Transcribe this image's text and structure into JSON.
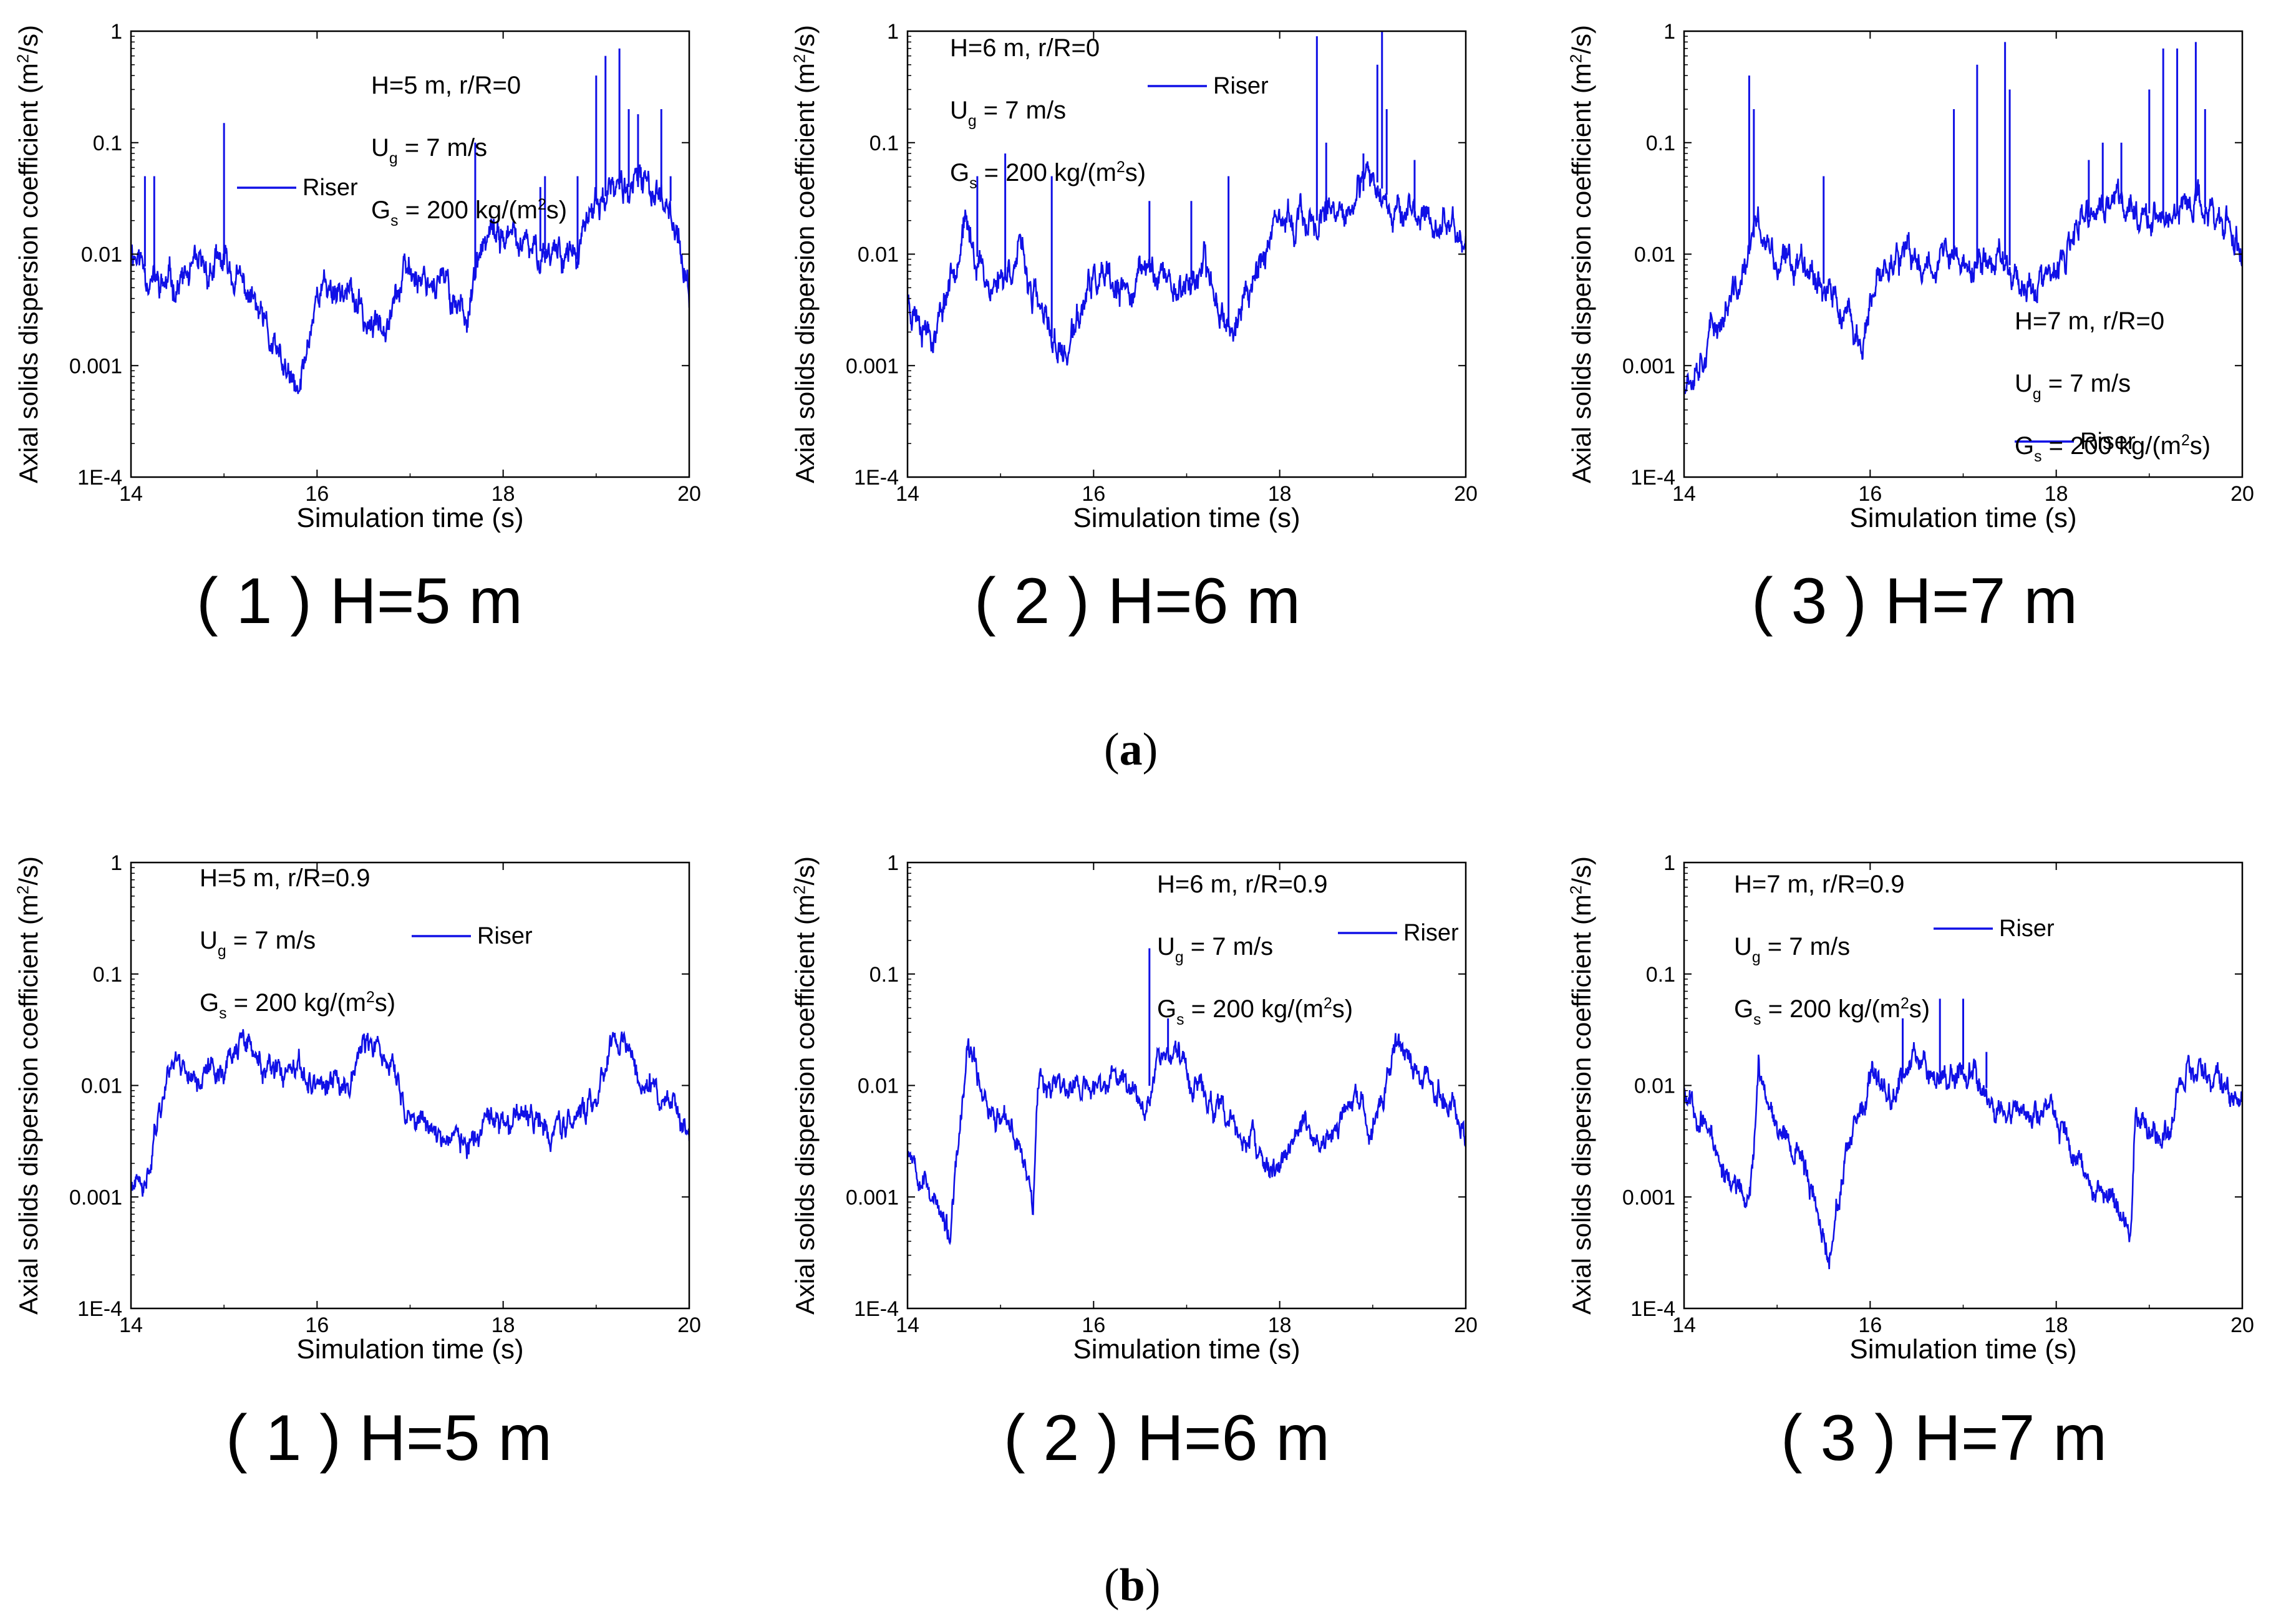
{
  "colors": {
    "series": "#1010e6",
    "axis": "#000000"
  },
  "figure": {
    "subcaption_a": {
      "open": "(",
      "letter": "a",
      "close": ")"
    },
    "subcaption_b": {
      "open": "(",
      "letter": "b",
      "close": ")"
    }
  },
  "chart_data": [
    {
      "id": "a1",
      "type": "line",
      "yscale": "log",
      "panel_caption": "( 1 ) H=5 m",
      "xlabel": "Simulation time (s)",
      "ylabel": "Axial solids dispersion coefficient (m2/s)",
      "xlim": [
        14,
        20
      ],
      "ylim": [
        0.0001,
        1
      ],
      "x_ticks": [
        "14",
        "16",
        "18",
        "20"
      ],
      "y_ticks": [
        "1E-4",
        "0.001",
        "0.01",
        "0.1",
        "1"
      ],
      "annotations": [
        "H=5 m, r/R=0",
        "Ug = 7 m/s",
        "Gs = 200 kg/(m2s)"
      ],
      "series": [
        {
          "name": "Riser",
          "seed": 11,
          "x": [
            14,
            14.3,
            14.6,
            15.0,
            15.3,
            15.5,
            15.8,
            16.0,
            16.3,
            16.6,
            16.8,
            17.0,
            17.3,
            17.6,
            17.8,
            18.0,
            18.3,
            18.6,
            18.8,
            19.0,
            19.3,
            19.6,
            19.8,
            20.0
          ],
          "values": [
            0.012,
            0.005,
            0.006,
            0.008,
            0.004,
            0.0015,
            0.0005,
            0.005,
            0.005,
            0.002,
            0.004,
            0.007,
            0.006,
            0.003,
            0.012,
            0.015,
            0.01,
            0.012,
            0.009,
            0.03,
            0.04,
            0.04,
            0.03,
            0.004
          ],
          "spikes": [
            [
              14.15,
              0.05
            ],
            [
              14.25,
              0.05
            ],
            [
              15.0,
              0.15
            ],
            [
              17.7,
              0.1
            ],
            [
              18.4,
              0.04
            ],
            [
              18.45,
              0.05
            ],
            [
              18.8,
              0.05
            ],
            [
              19.0,
              0.4
            ],
            [
              19.1,
              0.6
            ],
            [
              19.25,
              0.7
            ],
            [
              19.35,
              0.2
            ],
            [
              19.45,
              0.18
            ],
            [
              19.7,
              0.2
            ],
            [
              19.8,
              0.05
            ]
          ],
          "noise": 0.1
        }
      ]
    },
    {
      "id": "a2",
      "type": "line",
      "yscale": "log",
      "panel_caption": "( 2 ) H=6 m",
      "xlabel": "Simulation time (s)",
      "ylabel": "Axial solids dispersion coefficient (m2/s)",
      "xlim": [
        14,
        20
      ],
      "ylim": [
        0.0001,
        1
      ],
      "x_ticks": [
        "14",
        "16",
        "18",
        "20"
      ],
      "y_ticks": [
        "1E-4",
        "0.001",
        "0.01",
        "0.1",
        "1"
      ],
      "annotations": [
        "H=6 m, r/R=0",
        "Ug = 7 m/s",
        "Gs = 200 kg/(m2s)"
      ],
      "series": [
        {
          "name": "Riser",
          "seed": 23,
          "x": [
            14,
            14.3,
            14.6,
            14.9,
            15.2,
            15.5,
            15.7,
            16.0,
            16.3,
            16.6,
            16.9,
            17.2,
            17.5,
            17.8,
            18.1,
            18.4,
            18.7,
            19.0,
            19.2,
            19.5,
            19.8,
            20.0
          ],
          "values": [
            0.004,
            0.002,
            0.018,
            0.005,
            0.01,
            0.002,
            0.0012,
            0.006,
            0.004,
            0.008,
            0.005,
            0.007,
            0.002,
            0.01,
            0.02,
            0.02,
            0.02,
            0.05,
            0.03,
            0.02,
            0.02,
            0.012
          ],
          "spikes": [
            [
              14.75,
              0.05
            ],
            [
              15.05,
              0.08
            ],
            [
              15.55,
              0.05
            ],
            [
              16.6,
              0.03
            ],
            [
              17.05,
              0.03
            ],
            [
              17.45,
              0.05
            ],
            [
              18.4,
              0.9
            ],
            [
              18.5,
              0.1
            ],
            [
              18.9,
              0.08
            ],
            [
              19.05,
              0.5
            ],
            [
              19.1,
              1.0
            ],
            [
              19.15,
              0.2
            ],
            [
              19.45,
              0.07
            ]
          ],
          "noise": 0.1
        }
      ]
    },
    {
      "id": "a3",
      "type": "line",
      "yscale": "log",
      "panel_caption": "( 3 ) H=7 m",
      "xlabel": "Simulation time (s)",
      "ylabel": "Axial solids dispersion coefficient (m2/s)",
      "xlim": [
        14,
        20
      ],
      "ylim": [
        0.0001,
        1
      ],
      "x_ticks": [
        "14",
        "16",
        "18",
        "20"
      ],
      "y_ticks": [
        "1E-4",
        "0.001",
        "0.01",
        "0.1",
        "1"
      ],
      "annotations": [
        "H=7 m, r/R=0",
        "Ug = 7 m/s",
        "Gs = 200 kg/(m2s)"
      ],
      "series": [
        {
          "name": "Riser",
          "seed": 37,
          "x": [
            14,
            14.3,
            14.6,
            14.8,
            15.0,
            15.3,
            15.6,
            15.9,
            16.2,
            16.5,
            16.8,
            17.1,
            17.4,
            17.7,
            18.0,
            18.3,
            18.6,
            18.9,
            19.2,
            19.5,
            19.8,
            20.0
          ],
          "values": [
            0.0008,
            0.002,
            0.005,
            0.02,
            0.007,
            0.01,
            0.004,
            0.0015,
            0.01,
            0.008,
            0.01,
            0.007,
            0.01,
            0.005,
            0.006,
            0.02,
            0.03,
            0.025,
            0.02,
            0.03,
            0.02,
            0.01
          ],
          "spikes": [
            [
              14.7,
              0.4
            ],
            [
              14.75,
              0.2
            ],
            [
              15.5,
              0.05
            ],
            [
              16.9,
              0.2
            ],
            [
              17.15,
              0.5
            ],
            [
              17.45,
              0.8
            ],
            [
              17.5,
              0.3
            ],
            [
              18.35,
              0.07
            ],
            [
              18.5,
              0.1
            ],
            [
              18.7,
              0.1
            ],
            [
              19.0,
              0.3
            ],
            [
              19.15,
              0.7
            ],
            [
              19.3,
              0.7
            ],
            [
              19.5,
              0.8
            ],
            [
              19.6,
              0.2
            ]
          ],
          "noise": 0.1
        }
      ]
    },
    {
      "id": "b1",
      "type": "line",
      "yscale": "log",
      "panel_caption": "( 1 ) H=5 m",
      "xlabel": "Simulation time (s)",
      "ylabel": "Axial solids dispersion coefficient (m2/s)",
      "xlim": [
        14,
        20
      ],
      "ylim": [
        0.0001,
        1
      ],
      "x_ticks": [
        "14",
        "16",
        "18",
        "20"
      ],
      "y_ticks": [
        "1E-4",
        "0.001",
        "0.01",
        "0.1",
        "1"
      ],
      "annotations": [
        "H=5 m, r/R=0.9",
        "Ug = 7 m/s",
        "Gs = 200 kg/(m2s)"
      ],
      "series": [
        {
          "name": "Riser",
          "seed": 41,
          "x": [
            14,
            14.15,
            14.25,
            14.45,
            14.7,
            15.0,
            15.2,
            15.5,
            15.8,
            16.1,
            16.3,
            16.5,
            16.8,
            17.0,
            17.3,
            17.6,
            17.9,
            18.2,
            18.5,
            18.8,
            19.0,
            19.2,
            19.5,
            19.8,
            20.0
          ],
          "values": [
            0.0013,
            0.001,
            0.004,
            0.02,
            0.012,
            0.015,
            0.025,
            0.012,
            0.012,
            0.01,
            0.01,
            0.025,
            0.015,
            0.005,
            0.004,
            0.003,
            0.004,
            0.005,
            0.004,
            0.005,
            0.008,
            0.03,
            0.012,
            0.007,
            0.0025
          ],
          "spikes": [],
          "noise": 0.08
        }
      ]
    },
    {
      "id": "b2",
      "type": "line",
      "yscale": "log",
      "panel_caption": "( 2 ) H=6 m",
      "xlabel": "Simulation time (s)",
      "ylabel": "Axial solids dispersion coefficient (m2/s)",
      "xlim": [
        14,
        20
      ],
      "ylim": [
        0.0001,
        1
      ],
      "x_ticks": [
        "14",
        "16",
        "18",
        "20"
      ],
      "y_ticks": [
        "1E-4",
        "0.001",
        "0.01",
        "0.1",
        "1"
      ],
      "annotations": [
        "H=6 m, r/R=0.9",
        "Ug = 7 m/s",
        "Gs = 200 kg/(m2s)"
      ],
      "series": [
        {
          "name": "Riser",
          "seed": 53,
          "x": [
            14,
            14.2,
            14.45,
            14.65,
            14.9,
            15.2,
            15.35,
            15.4,
            15.7,
            16.0,
            16.3,
            16.55,
            16.7,
            16.9,
            17.1,
            17.4,
            17.7,
            17.9,
            18.2,
            18.5,
            18.8,
            19.0,
            19.25,
            19.5,
            19.8,
            20.0
          ],
          "values": [
            0.003,
            0.0015,
            0.0004,
            0.02,
            0.006,
            0.003,
            0.001,
            0.012,
            0.01,
            0.009,
            0.012,
            0.007,
            0.02,
            0.02,
            0.01,
            0.005,
            0.003,
            0.0015,
            0.004,
            0.003,
            0.007,
            0.004,
            0.025,
            0.012,
            0.008,
            0.004
          ],
          "spikes": [
            [
              16.6,
              0.17
            ],
            [
              16.8,
              0.04
            ]
          ],
          "noise": 0.08
        }
      ]
    },
    {
      "id": "b3",
      "type": "line",
      "yscale": "log",
      "panel_caption": "( 3 ) H=7 m",
      "xlabel": "Simulation time (s)",
      "ylabel": "Axial solids dispersion coefficient (m2/s)",
      "xlim": [
        14,
        20
      ],
      "ylim": [
        0.0001,
        1
      ],
      "x_ticks": [
        "14",
        "16",
        "18",
        "20"
      ],
      "y_ticks": [
        "1E-4",
        "0.001",
        "0.01",
        "0.1",
        "1"
      ],
      "annotations": [
        "H=7 m, r/R=0.9",
        "Ug = 7 m/s",
        "Gs = 200 kg/(m2s)"
      ],
      "series": [
        {
          "name": "Riser",
          "seed": 67,
          "x": [
            14,
            14.2,
            14.4,
            14.6,
            14.7,
            14.8,
            15.0,
            15.3,
            15.55,
            15.7,
            16.0,
            16.3,
            16.5,
            16.8,
            17.1,
            17.4,
            17.8,
            18.0,
            18.2,
            18.5,
            18.8,
            18.85,
            19.0,
            19.2,
            19.4,
            19.7,
            20.0
          ],
          "values": [
            0.01,
            0.005,
            0.002,
            0.001,
            0.0008,
            0.012,
            0.005,
            0.002,
            0.0003,
            0.0015,
            0.01,
            0.01,
            0.02,
            0.012,
            0.015,
            0.006,
            0.005,
            0.006,
            0.002,
            0.0012,
            0.0005,
            0.005,
            0.004,
            0.004,
            0.015,
            0.012,
            0.006
          ],
          "spikes": [
            [
              16.35,
              0.04
            ],
            [
              16.75,
              0.06
            ],
            [
              17.0,
              0.06
            ],
            [
              17.25,
              0.02
            ]
          ],
          "noise": 0.08
        }
      ]
    }
  ]
}
